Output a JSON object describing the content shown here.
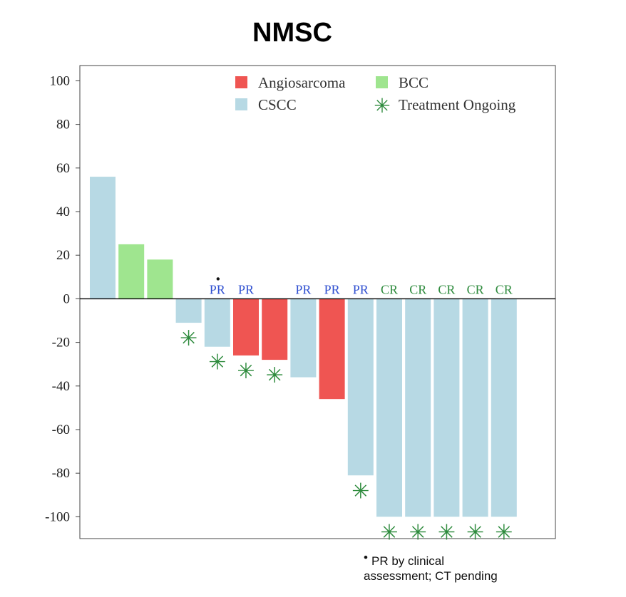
{
  "chart_data": {
    "type": "bar",
    "title": "NMSC",
    "xlabel": "",
    "ylabel": "",
    "ylim": [
      -110,
      107
    ],
    "yticks": [
      100,
      80,
      60,
      40,
      20,
      0,
      -20,
      -40,
      -60,
      -80,
      -100
    ],
    "legend": {
      "placement": "top-right",
      "entries": [
        {
          "name": "Angiosarcoma",
          "color": "#ef5552",
          "marker": "square"
        },
        {
          "name": "BCC",
          "color": "#9fe58f",
          "marker": "square"
        },
        {
          "name": "CSCC",
          "color": "#b7d9e4",
          "marker": "square"
        },
        {
          "name": "Treatment Ongoing",
          "color": "#2e8b3d",
          "marker": "asterisk"
        }
      ]
    },
    "series_colors": {
      "Angiosarcoma": "#ef5552",
      "BCC": "#9fe58f",
      "CSCC": "#b7d9e4"
    },
    "response_colors": {
      "PR": "#2f4fd0",
      "CR": "#2e8b3d"
    },
    "ongoing_color": "#2e8b3d",
    "bars": [
      {
        "value": 56,
        "type": "CSCC",
        "response": "",
        "ongoing": false,
        "footnote": false
      },
      {
        "value": 25,
        "type": "BCC",
        "response": "",
        "ongoing": false,
        "footnote": false
      },
      {
        "value": 18,
        "type": "BCC",
        "response": "",
        "ongoing": false,
        "footnote": false
      },
      {
        "value": -11,
        "type": "CSCC",
        "response": "",
        "ongoing": true,
        "footnote": false
      },
      {
        "value": -22,
        "type": "CSCC",
        "response": "PR",
        "ongoing": true,
        "footnote": true
      },
      {
        "value": -26,
        "type": "Angiosarcoma",
        "response": "PR",
        "ongoing": true,
        "footnote": false
      },
      {
        "value": -28,
        "type": "Angiosarcoma",
        "response": "",
        "ongoing": true,
        "footnote": false
      },
      {
        "value": -36,
        "type": "CSCC",
        "response": "PR",
        "ongoing": false,
        "footnote": false
      },
      {
        "value": -46,
        "type": "Angiosarcoma",
        "response": "PR",
        "ongoing": false,
        "footnote": false
      },
      {
        "value": -81,
        "type": "CSCC",
        "response": "PR",
        "ongoing": true,
        "footnote": false
      },
      {
        "value": -100,
        "type": "CSCC",
        "response": "CR",
        "ongoing": true,
        "footnote": false
      },
      {
        "value": -100,
        "type": "CSCC",
        "response": "CR",
        "ongoing": true,
        "footnote": false
      },
      {
        "value": -100,
        "type": "CSCC",
        "response": "CR",
        "ongoing": true,
        "footnote": false
      },
      {
        "value": -100,
        "type": "CSCC",
        "response": "CR",
        "ongoing": true,
        "footnote": false
      },
      {
        "value": -100,
        "type": "CSCC",
        "response": "CR",
        "ongoing": true,
        "footnote": false
      }
    ],
    "footnote": {
      "marker": "•",
      "lines": [
        "PR by clinical",
        "assessment; CT pending"
      ]
    }
  }
}
